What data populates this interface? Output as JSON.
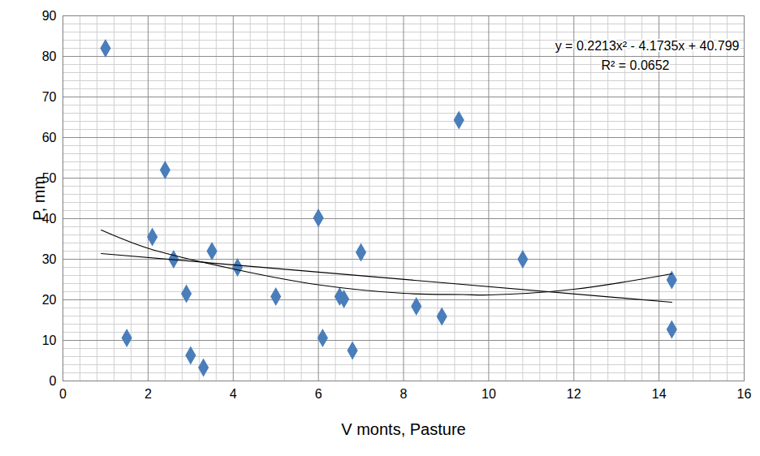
{
  "chart_data": {
    "type": "scatter",
    "x_label": "V monts, Pasture",
    "y_label": "P, mm",
    "annotations": [
      "y = 0.2213x² - 4.1735x + 40.799",
      "R² = 0.0652"
    ],
    "series": [
      {
        "type": "scatter",
        "color": "#4a7ebb",
        "marker": "diamond",
        "x": [
          1.0,
          1.5,
          2.1,
          2.4,
          2.6,
          2.9,
          3.0,
          3.3,
          3.5,
          4.1,
          5.0,
          6.0,
          6.1,
          6.5,
          6.6,
          6.8,
          7.0,
          8.3,
          8.9,
          9.3,
          10.8,
          14.3,
          14.3
        ],
        "values": [
          82,
          10.6,
          35.5,
          52,
          30,
          21.5,
          6.3,
          3.3,
          32,
          28,
          20.8,
          40.2,
          10.6,
          20.8,
          20.2,
          7.5,
          31.7,
          18.4,
          15.9,
          64.3,
          30,
          24.9,
          12.7
        ]
      },
      {
        "type": "line",
        "color": "#000000",
        "line_style": "solid",
        "x": [
          0.9,
          2,
          4,
          6,
          8,
          9.4,
          10,
          12,
          14.3
        ],
        "values": [
          37.2,
          32.7,
          27.6,
          23.7,
          21.6,
          21.3,
          21.2,
          22.6,
          26.4
        ]
      },
      {
        "type": "line",
        "color": "#000000",
        "line_style": "solid",
        "x": [
          0.9,
          14.3
        ],
        "values": [
          31.4,
          19.4
        ]
      }
    ],
    "xlim": [
      0,
      16
    ],
    "xticks": [
      0,
      2,
      4,
      6,
      8,
      10,
      12,
      14,
      16
    ],
    "ylim": [
      0,
      90
    ],
    "yticks": [
      0,
      10,
      20,
      30,
      40,
      50,
      60,
      70,
      80,
      90
    ],
    "grid": true
  }
}
